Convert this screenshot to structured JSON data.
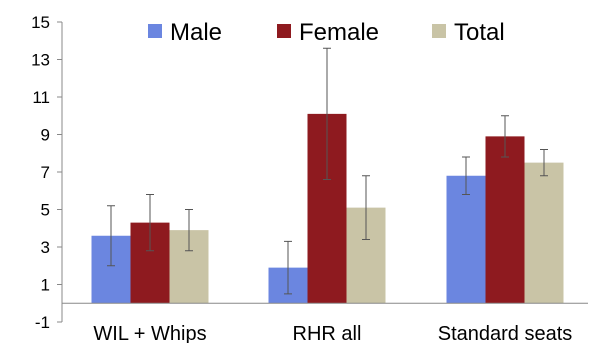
{
  "chart_data": {
    "type": "bar",
    "categories": [
      "WIL + Whips",
      "RHR all",
      "Standard seats"
    ],
    "series": [
      {
        "name": "Male",
        "color": "#6b86e0",
        "values": [
          3.6,
          1.9,
          6.8
        ],
        "err_low": [
          2.0,
          0.5,
          5.8
        ],
        "err_high": [
          5.2,
          3.3,
          7.8
        ]
      },
      {
        "name": "Female",
        "color": "#8e1a1f",
        "values": [
          4.3,
          10.1,
          8.9
        ],
        "err_low": [
          2.8,
          6.6,
          7.8
        ],
        "err_high": [
          5.8,
          13.6,
          10.0
        ]
      },
      {
        "name": "Total",
        "color": "#c9c4a6",
        "values": [
          3.9,
          5.1,
          7.5
        ],
        "err_low": [
          2.8,
          3.4,
          6.8
        ],
        "err_high": [
          5.0,
          6.8,
          8.2
        ]
      }
    ],
    "ylim": [
      -1,
      15
    ],
    "yticks": [
      "-1",
      "1",
      "3",
      "5",
      "7",
      "9",
      "11",
      "13",
      "15"
    ],
    "legend_position": "top",
    "grid": false
  }
}
